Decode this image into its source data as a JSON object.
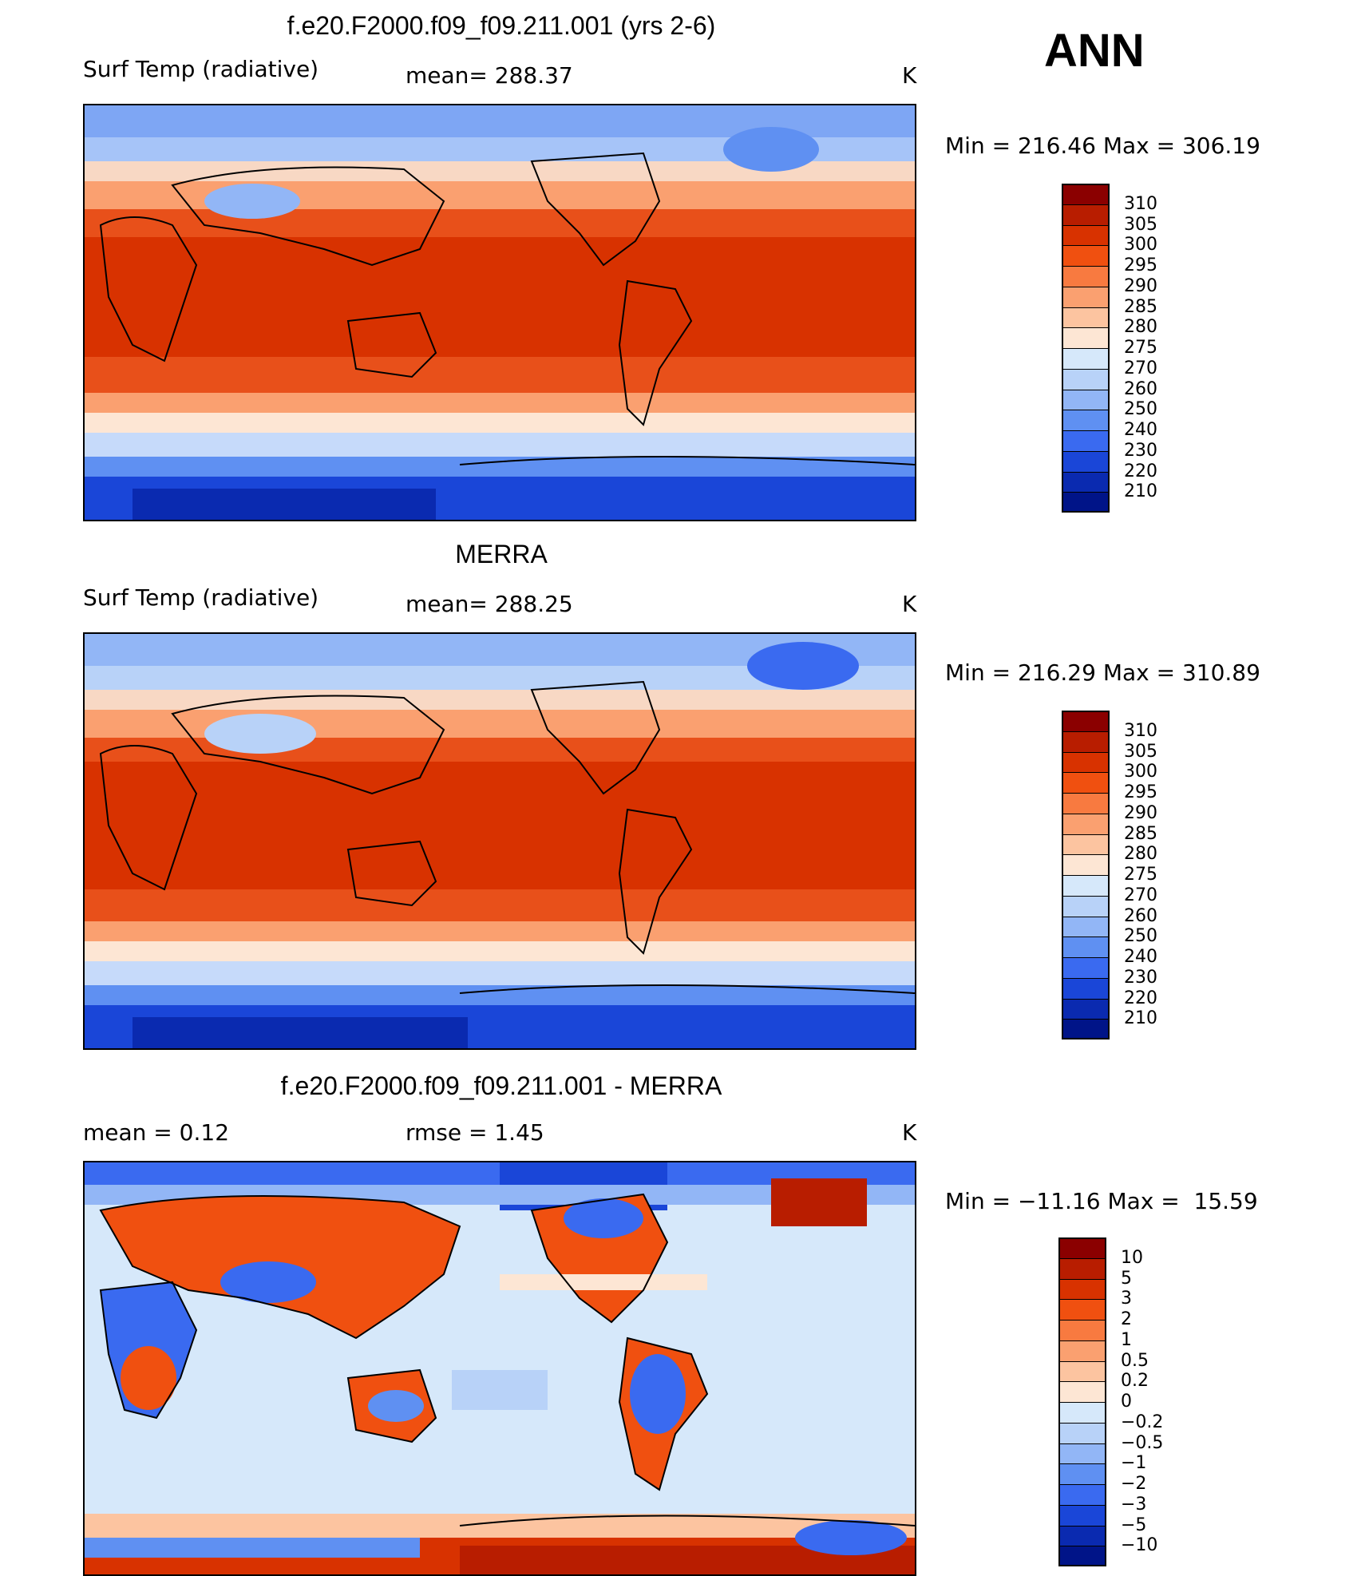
{
  "season_label": "ANN",
  "panels": [
    {
      "title": "f.e20.F2000.f09_f09.211.001 (yrs 2-6)",
      "left_label": "Surf Temp (radiative)",
      "center_label": "mean= 288.37",
      "units": "K",
      "minmax": "Min = 216.46 Max = 306.19"
    },
    {
      "title": "MERRA",
      "left_label": "Surf Temp (radiative)",
      "center_label": "mean= 288.25",
      "units": "K",
      "minmax": "Min = 216.29 Max = 310.89"
    },
    {
      "title": "f.e20.F2000.f09_f09.211.001 - MERRA",
      "left_label": "mean =    0.12",
      "center_label": "rmse =    1.45",
      "units": "K",
      "minmax": "Min = −11.16 Max =  15.59"
    }
  ],
  "colorbars": [
    {
      "labels": [
        "310",
        "305",
        "300",
        "295",
        "290",
        "285",
        "280",
        "275",
        "270",
        "260",
        "250",
        "240",
        "230",
        "220",
        "210"
      ],
      "colors": [
        "#8b0000",
        "#b81d00",
        "#d83200",
        "#f05010",
        "#f87a40",
        "#faa070",
        "#fcc4a0",
        "#fde6d4",
        "#d6e8fa",
        "#b8d2f8",
        "#92b6f6",
        "#5f90f2",
        "#3a6af0",
        "#1a46d8",
        "#0a2ab0",
        "#001488"
      ]
    },
    {
      "labels": [
        "310",
        "305",
        "300",
        "295",
        "290",
        "285",
        "280",
        "275",
        "270",
        "260",
        "250",
        "240",
        "230",
        "220",
        "210"
      ],
      "colors": [
        "#8b0000",
        "#b81d00",
        "#d83200",
        "#f05010",
        "#f87a40",
        "#faa070",
        "#fcc4a0",
        "#fde6d4",
        "#d6e8fa",
        "#b8d2f8",
        "#92b6f6",
        "#5f90f2",
        "#3a6af0",
        "#1a46d8",
        "#0a2ab0",
        "#001488"
      ]
    },
    {
      "labels": [
        "10",
        "5",
        "3",
        "2",
        "1",
        "0.5",
        "0.2",
        "0",
        "−0.2",
        "−0.5",
        "−1",
        "−2",
        "−3",
        "−5",
        "−10"
      ],
      "colors": [
        "#8b0000",
        "#b81d00",
        "#d83200",
        "#f05010",
        "#f87a40",
        "#faa070",
        "#fcc4a0",
        "#fde6d4",
        "#d6e8fa",
        "#b8d2f8",
        "#92b6f6",
        "#5f90f2",
        "#3a6af0",
        "#1a46d8",
        "#0a2ab0",
        "#001488"
      ]
    }
  ]
}
